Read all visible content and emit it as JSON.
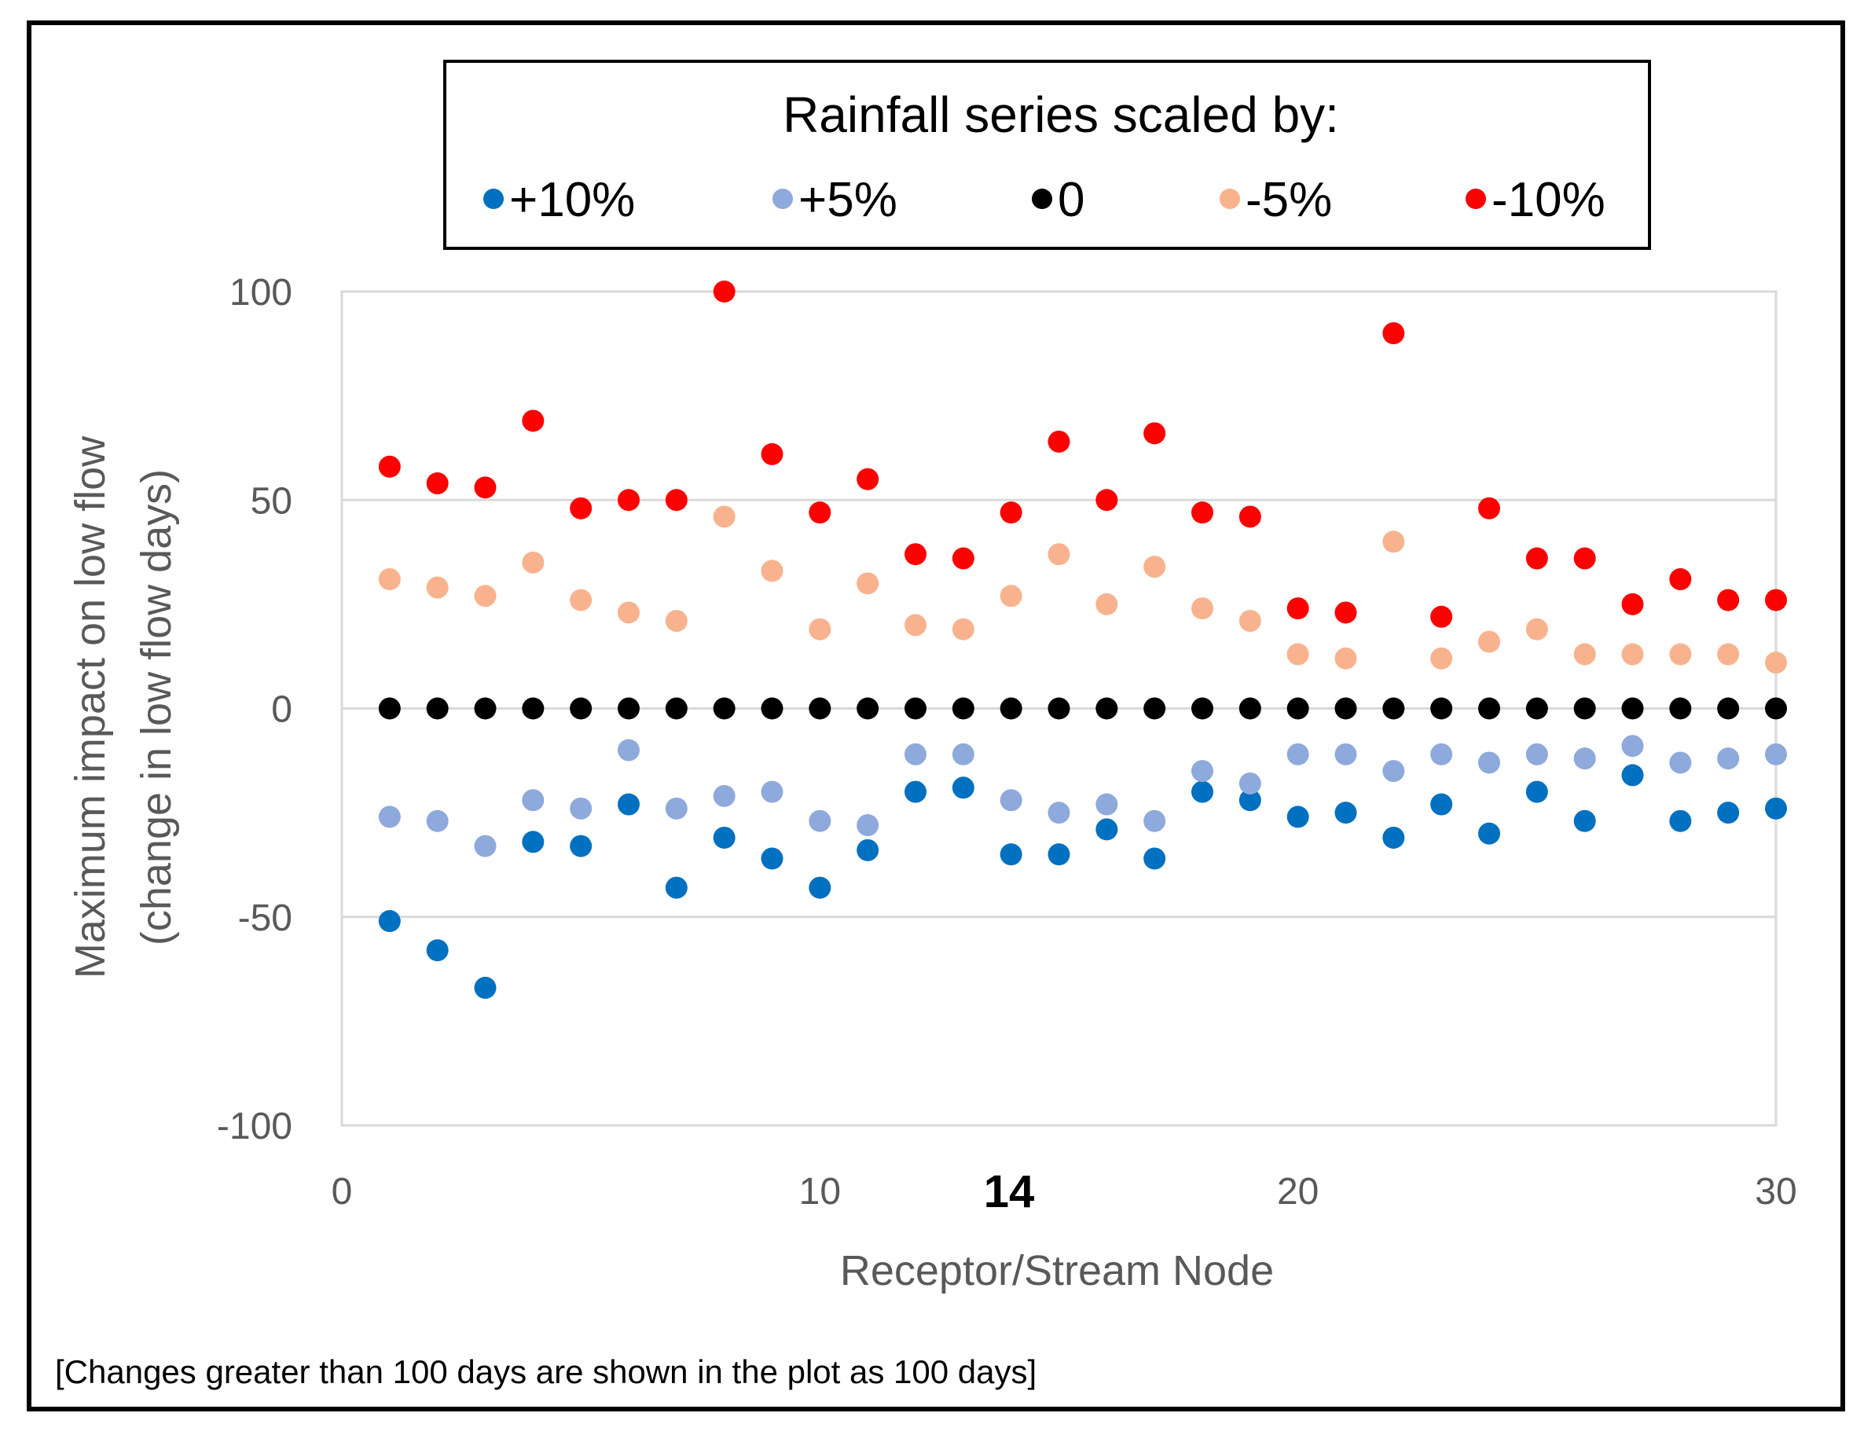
{
  "chart_data": {
    "type": "scatter",
    "x": [
      1,
      2,
      3,
      4,
      5,
      6,
      7,
      8,
      9,
      10,
      11,
      12,
      13,
      14,
      15,
      16,
      17,
      18,
      19,
      20,
      21,
      22,
      23,
      24,
      25,
      26,
      27,
      28,
      29,
      30
    ],
    "series": [
      {
        "name": "+10%",
        "color": "#0070C0",
        "values": [
          -51,
          -58,
          -67,
          -32,
          -33,
          -23,
          -43,
          -31,
          -36,
          -43,
          -34,
          -20,
          -19,
          -35,
          -35,
          -29,
          -36,
          -20,
          -22,
          -26,
          -25,
          -31,
          -23,
          -30,
          -20,
          -27,
          -16,
          -27,
          -25,
          -24
        ]
      },
      {
        "name": "+5%",
        "color": "#8EA9DB",
        "values": [
          -26,
          -27,
          -33,
          -22,
          -24,
          -10,
          -24,
          -21,
          -20,
          -27,
          -28,
          -11,
          -11,
          -22,
          -25,
          -23,
          -27,
          -15,
          -18,
          -11,
          -11,
          -15,
          -11,
          -13,
          -11,
          -12,
          -9,
          -13,
          -12,
          -11
        ]
      },
      {
        "name": "0",
        "color": "#000000",
        "values": [
          0,
          0,
          0,
          0,
          0,
          0,
          0,
          0,
          0,
          0,
          0,
          0,
          0,
          0,
          0,
          0,
          0,
          0,
          0,
          0,
          0,
          0,
          0,
          0,
          0,
          0,
          0,
          0,
          0,
          0
        ]
      },
      {
        "name": "-5%",
        "color": "#F8B38E",
        "values": [
          31,
          29,
          27,
          35,
          26,
          23,
          21,
          46,
          33,
          19,
          30,
          20,
          19,
          27,
          37,
          25,
          34,
          24,
          21,
          13,
          12,
          40,
          12,
          16,
          19,
          13,
          13,
          13,
          13,
          11
        ]
      },
      {
        "name": "-10%",
        "color": "#FF0000",
        "values": [
          58,
          54,
          53,
          69,
          48,
          50,
          50,
          100,
          61,
          47,
          55,
          37,
          36,
          47,
          64,
          50,
          66,
          47,
          46,
          24,
          23,
          90,
          22,
          48,
          36,
          36,
          25,
          31,
          26,
          26
        ]
      }
    ],
    "title": "Rainfall series scaled by:",
    "xlabel": "Receptor/Stream Node",
    "ylabel_line1": "Maximum impact on low flow",
    "ylabel_line2": "(change in low flow days)",
    "xlim": [
      0,
      30
    ],
    "ylim": [
      -100,
      100
    ],
    "x_ticks": [
      "0",
      "10",
      "20",
      "30"
    ],
    "y_ticks": [
      "100",
      "50",
      "0",
      "-50",
      "-100"
    ],
    "highlight_tick": "14",
    "legend_position": "top-center",
    "grid": "horizontal",
    "footnote": "[Changes greater than 100  days are shown in the plot as 100  days]"
  }
}
